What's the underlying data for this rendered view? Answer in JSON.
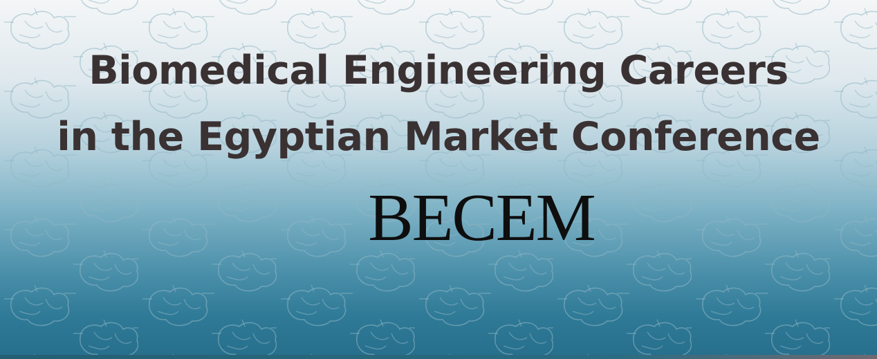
{
  "banner": {
    "title_line_1": "Biomedical Engineering Careers",
    "title_line_2": "in the Egyptian Market Conference",
    "acronym": "BECEM",
    "background_pattern_icon": "anatomical-heart-icon",
    "colors": {
      "title": "#3a3132",
      "acronym": "#0e0e0e",
      "gradient_top": "#f4f6f7",
      "gradient_bottom": "#266e8c"
    }
  }
}
